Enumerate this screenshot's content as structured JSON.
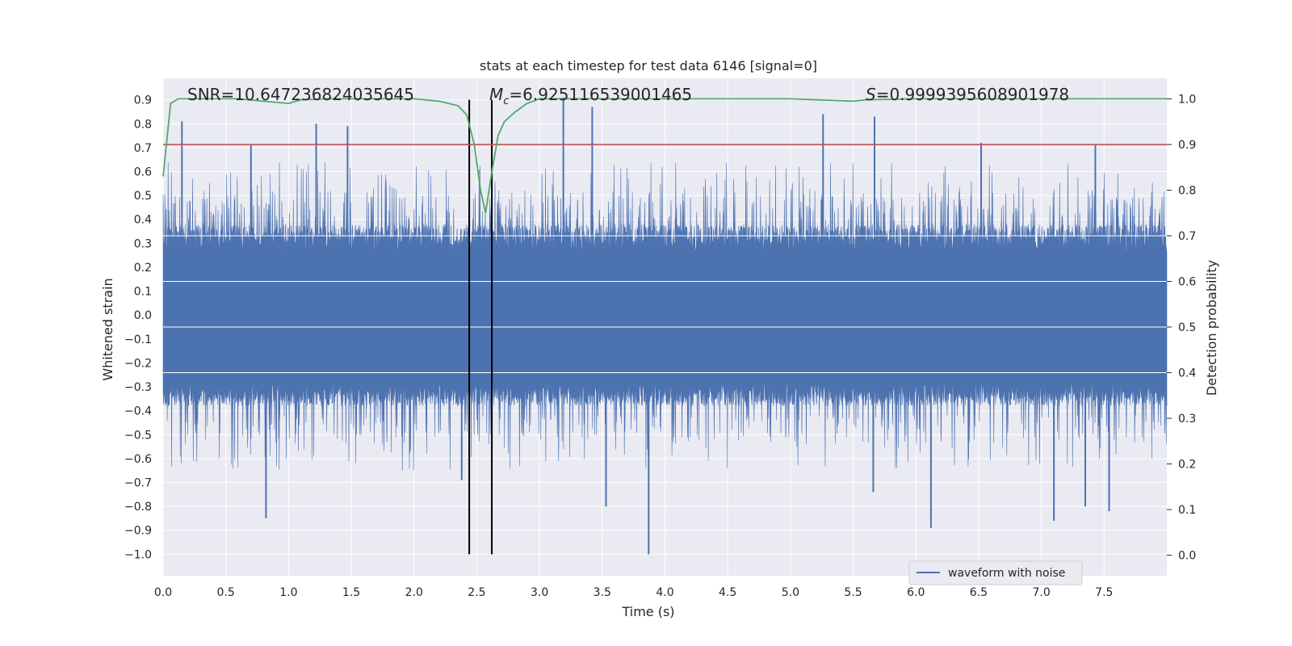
{
  "chart_data": {
    "type": "line",
    "title": "stats at each timestep for test data 6146 [signal=0]",
    "xlabel": "Time (s)",
    "ylabel_left": "Whitened strain",
    "ylabel_right": "Detection probability",
    "xlim": [
      0.0,
      8.0
    ],
    "ylim_left": [
      -1.09,
      0.99
    ],
    "ylim_right": [
      -0.045,
      1.045
    ],
    "x_ticks": [
      "0.0",
      "0.5",
      "1.0",
      "1.5",
      "2.0",
      "2.5",
      "3.0",
      "3.5",
      "4.0",
      "4.5",
      "5.0",
      "5.5",
      "6.0",
      "6.5",
      "7.0",
      "7.5"
    ],
    "x_tick_values": [
      0.0,
      0.5,
      1.0,
      1.5,
      2.0,
      2.5,
      3.0,
      3.5,
      4.0,
      4.5,
      5.0,
      5.5,
      6.0,
      6.5,
      7.0,
      7.5
    ],
    "y_left_ticks": [
      "0.9",
      "0.8",
      "0.7",
      "0.6",
      "0.5",
      "0.4",
      "0.3",
      "0.2",
      "0.1",
      "0.0",
      "−0.1",
      "−0.2",
      "−0.3",
      "−0.4",
      "−0.5",
      "−0.6",
      "−0.7",
      "−0.8",
      "−0.9",
      "−1.0"
    ],
    "y_left_tick_values": [
      0.9,
      0.8,
      0.7,
      0.6,
      0.5,
      0.4,
      0.3,
      0.2,
      0.1,
      0.0,
      -0.1,
      -0.2,
      -0.3,
      -0.4,
      -0.5,
      -0.6,
      -0.7,
      -0.8,
      -0.9,
      -1.0
    ],
    "y_right_ticks": [
      "1.0",
      "0.9",
      "0.8",
      "0.7",
      "0.6",
      "0.5",
      "0.4",
      "0.3",
      "0.2",
      "0.1",
      "0.0"
    ],
    "y_right_tick_values": [
      1.0,
      0.9,
      0.8,
      0.7,
      0.6,
      0.5,
      0.4,
      0.3,
      0.2,
      0.1,
      0.0
    ],
    "grid": true,
    "annotations": {
      "snr": "SNR=10.647236824035645",
      "mc_symbol": "M",
      "mc_subscript": "c",
      "mc_value": "=6.925116539001465",
      "s_symbol": "S",
      "s_value": "=0.9999395608901978"
    },
    "legend": {
      "placement": "lower-right",
      "entries": [
        "waveform with noise"
      ]
    },
    "series": [
      {
        "name": "waveform with noise",
        "axis": "left",
        "color": "#4c72b0",
        "kind": "dense-noise",
        "x_range": [
          0.0,
          8.0
        ],
        "typical_band": [
          -0.45,
          0.5
        ],
        "peaks_x": [
          0.15,
          0.7,
          1.22,
          1.47,
          3.19,
          3.42,
          5.26,
          5.67,
          6.52,
          7.43
        ],
        "peaks_y": [
          0.81,
          0.71,
          0.8,
          0.79,
          0.91,
          0.87,
          0.84,
          0.83,
          0.72,
          0.71
        ],
        "troughs_x": [
          0.82,
          2.38,
          3.53,
          3.87,
          5.66,
          6.12,
          7.1,
          7.35,
          7.54
        ],
        "troughs_y": [
          -0.85,
          -0.69,
          -0.8,
          -1.0,
          -0.74,
          -0.89,
          -0.86,
          -0.8,
          -0.82
        ]
      },
      {
        "name": "",
        "axis": "right",
        "color": "#55a868",
        "kind": "line",
        "x": [
          0.0,
          0.06,
          0.12,
          0.3,
          0.6,
          0.8,
          1.0,
          1.1,
          1.3,
          1.6,
          2.0,
          2.2,
          2.35,
          2.42,
          2.48,
          2.53,
          2.57,
          2.62,
          2.67,
          2.72,
          2.8,
          2.9,
          3.0,
          3.3,
          4.0,
          5.0,
          5.3,
          5.5,
          5.6,
          6.0,
          7.0,
          8.0
        ],
        "y": [
          0.83,
          0.99,
          1.0,
          1.0,
          1.0,
          0.995,
          0.99,
          0.998,
          1.0,
          1.0,
          1.0,
          0.995,
          0.985,
          0.965,
          0.9,
          0.8,
          0.75,
          0.84,
          0.92,
          0.95,
          0.97,
          0.99,
          1.0,
          1.0,
          1.0,
          1.0,
          0.997,
          0.995,
          0.998,
          1.0,
          1.0,
          1.0
        ]
      },
      {
        "name": "",
        "axis": "right",
        "color": "#c44e52",
        "kind": "hline",
        "y": 0.9
      }
    ],
    "vlines": {
      "axis": "left",
      "x": [
        2.44,
        2.62
      ],
      "y_range": [
        -1.0,
        0.9
      ],
      "color": "#000000"
    }
  }
}
